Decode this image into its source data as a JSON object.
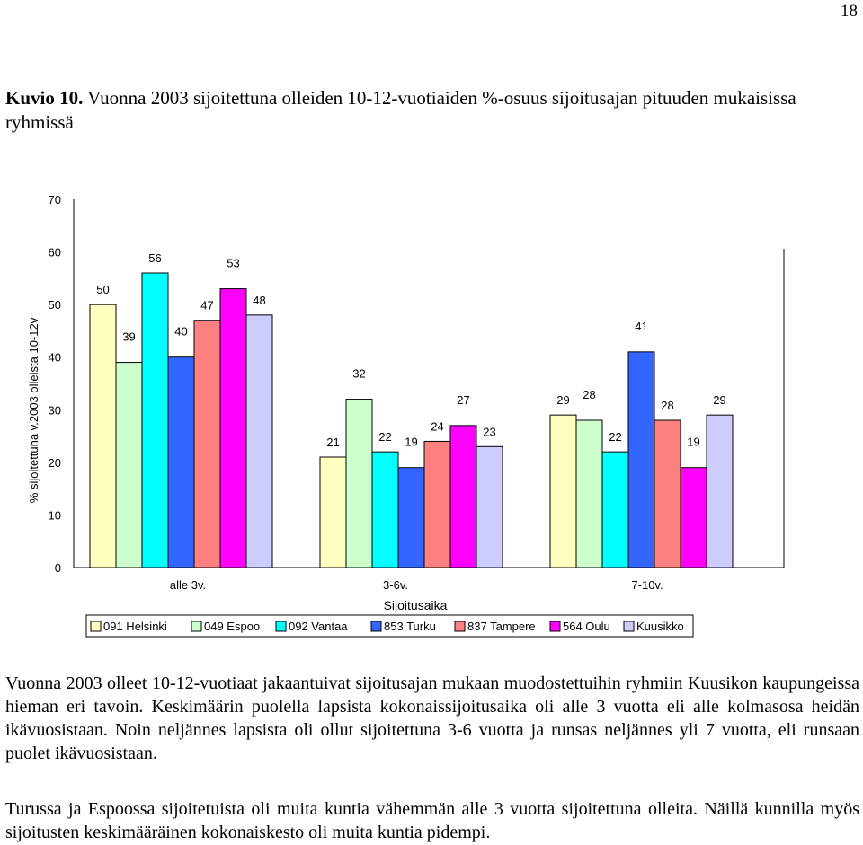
{
  "page_number": "18",
  "caption": {
    "label": "Kuvio  10.",
    "text": " Vuonna 2003 sijoitettuna olleiden 10-12-vuotiaiden %-osuus  sijoitusajan pituuden mukaisissa ryhmissä"
  },
  "chart_data": {
    "type": "bar",
    "categories": [
      "alle 3v.",
      "3-6v.",
      "7-10v."
    ],
    "xlabel": "Sijoitusaika",
    "ylabel": "% sijoitettuna v.2003 olleista 10-12v",
    "ylim": [
      0,
      70
    ],
    "yticks": [
      0,
      10,
      20,
      30,
      40,
      50,
      60,
      70
    ],
    "grid": false,
    "legend": "bottom",
    "series": [
      {
        "name": "091 Helsinki",
        "color": "#FFFFC0",
        "values": [
          50,
          21,
          29
        ]
      },
      {
        "name": "049 Espoo",
        "color": "#CCFFCC",
        "values": [
          39,
          32,
          28
        ]
      },
      {
        "name": "092 Vantaa",
        "color": "#00FFFF",
        "values": [
          56,
          22,
          22
        ]
      },
      {
        "name": "853 Turku",
        "color": "#3366FF",
        "values": [
          40,
          19,
          41
        ]
      },
      {
        "name": "837 Tampere",
        "color": "#FF8080",
        "values": [
          47,
          24,
          28
        ]
      },
      {
        "name": "564 Oulu",
        "color": "#FF00FF",
        "values": [
          53,
          27,
          19
        ]
      },
      {
        "name": "Kuusikko",
        "color": "#CCCCFF",
        "values": [
          48,
          23,
          29
        ]
      }
    ]
  },
  "paragraphs": [
    "Vuonna 2003  olleet 10-12-vuotiaat jakaantuivat   sijoitusajan mukaan muodostettuihin ryhmiin Kuusikon kaupungeissa hieman eri tavoin. Keskimäärin  puolella lapsista kokonaissijoitusaika oli alle 3 vuotta eli alle kolmasosa heidän ikävuosistaan. Noin neljännes lapsista oli ollut sijoitettuna 3-6 vuotta ja runsas neljännes yli 7 vuotta, eli runsaan puolet ikävuosistaan.",
    "Turussa ja Espoossa sijoitetuista oli muita kuntia vähemmän alle 3 vuotta sijoitettuna olleita. Näillä kunnilla myös sijoitusten keskimääräinen kokonaiskesto oli muita kuntia pidempi."
  ]
}
